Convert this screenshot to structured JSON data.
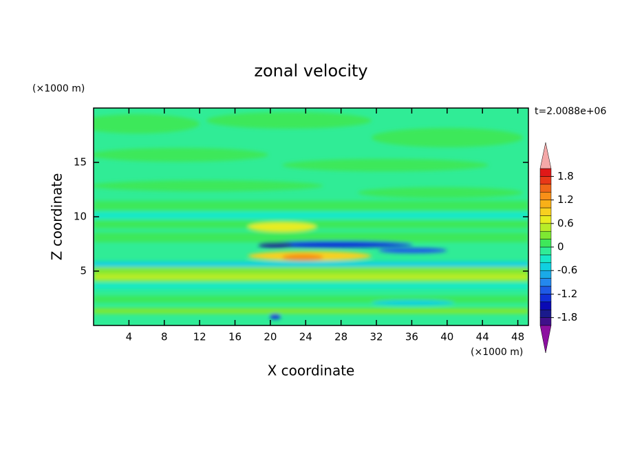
{
  "chart_data": {
    "type": "contour",
    "title": "zonal velocity",
    "time_label": "t=2.0088e+06",
    "x_label": "X coordinate",
    "y_label": "Z coordinate",
    "x_unit": "(×1000 m)",
    "y_unit": "(×1000 m)",
    "xlim": [
      0,
      49.2
    ],
    "xticks": [
      4,
      8,
      12,
      16,
      20,
      24,
      28,
      32,
      36,
      40,
      44,
      48
    ],
    "ylim": [
      0,
      20
    ],
    "yticks": [
      5,
      10,
      15
    ],
    "colorbar": {
      "clim": [
        -2,
        2
      ],
      "ticks": [
        -1.8,
        -1.2,
        -0.6,
        0,
        0.6,
        1.2,
        1.8
      ],
      "colors": [
        "#40108a",
        "#1a1a8c",
        "#0a0ab4",
        "#1030d8",
        "#1e5ae6",
        "#2488ee",
        "#1aaae8",
        "#10d0e0",
        "#18e8c8",
        "#30ec96",
        "#3ee85a",
        "#7ee832",
        "#b8ec28",
        "#e8ec20",
        "#f8d020",
        "#f8b018",
        "#f89018",
        "#f06818",
        "#e83818",
        "#e01818"
      ],
      "under_color": "#8c10a0",
      "over_color": "#f4a8a8"
    }
  }
}
